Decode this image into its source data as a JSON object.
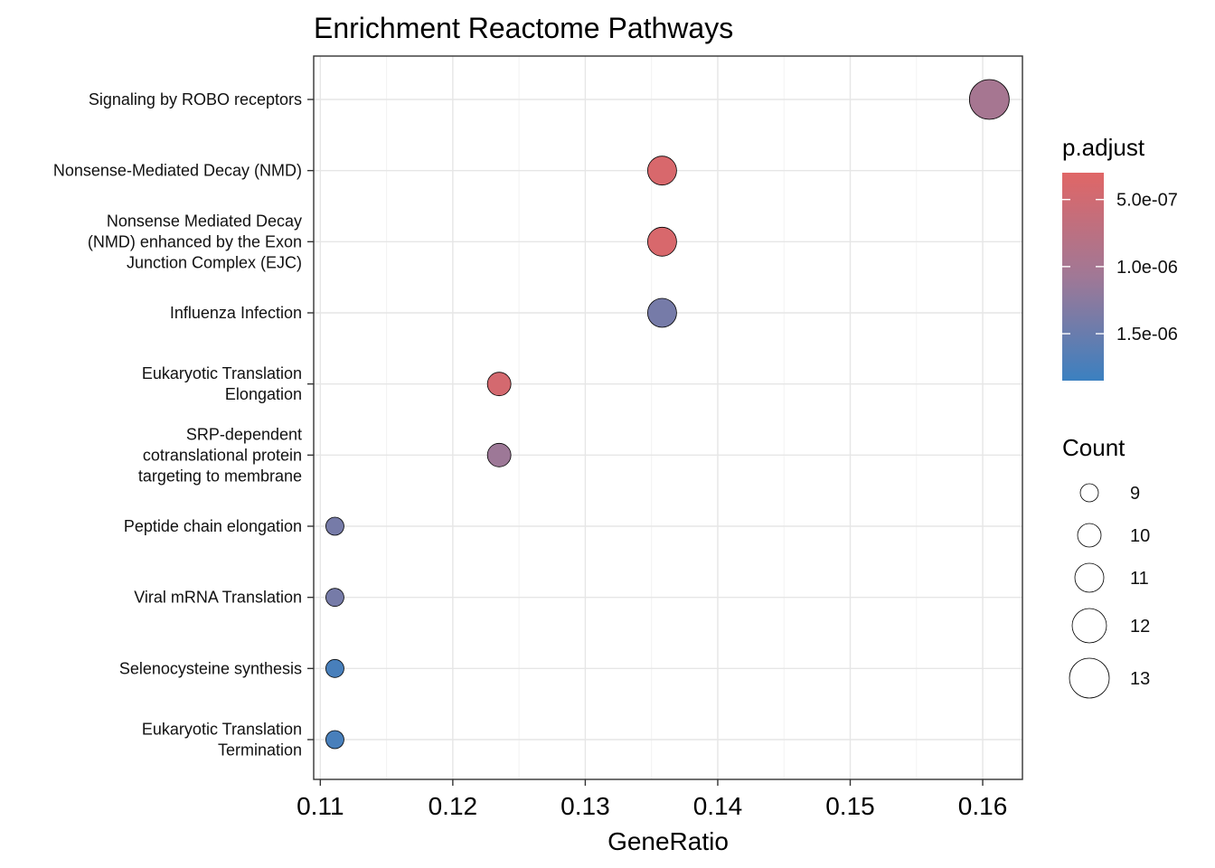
{
  "chart_data": {
    "type": "scatter",
    "title": "Enrichment Reactome Pathways",
    "xlabel": "GeneRatio",
    "ylabel": "",
    "xlim": [
      0.1095,
      0.163
    ],
    "x_ticks": [
      "0.11",
      "0.12",
      "0.13",
      "0.14",
      "0.15",
      "0.16"
    ],
    "grid": true,
    "categories": [
      "Signaling by ROBO receptors",
      "Nonsense-Mediated Decay (NMD)",
      "Nonsense Mediated Decay (NMD) enhanced by the Exon Junction Complex (EJC)",
      "Influenza Infection",
      "Eukaryotic Translation Elongation",
      "SRP-dependent cotranslational protein targeting to membrane",
      "Peptide chain elongation",
      "Viral mRNA Translation",
      "Selenocysteine synthesis",
      "Eukaryotic Translation Termination"
    ],
    "category_lines": [
      [
        "Signaling by ROBO receptors"
      ],
      [
        "Nonsense-Mediated Decay (NMD)"
      ],
      [
        "Nonsense Mediated Decay",
        "(NMD) enhanced by the Exon",
        "Junction Complex (EJC)"
      ],
      [
        "Influenza Infection"
      ],
      [
        "Eukaryotic Translation",
        "Elongation"
      ],
      [
        "SRP-dependent",
        "cotranslational protein",
        "targeting to membrane"
      ],
      [
        "Peptide chain elongation"
      ],
      [
        "Viral mRNA Translation"
      ],
      [
        "Selenocysteine synthesis"
      ],
      [
        "Eukaryotic Translation",
        "Termination"
      ]
    ],
    "points": [
      {
        "category": "Signaling by ROBO receptors",
        "gene_ratio": 0.1605,
        "count": 13,
        "p_adjust": 1e-06
      },
      {
        "category": "Nonsense-Mediated Decay (NMD)",
        "gene_ratio": 0.1358,
        "count": 11,
        "p_adjust": 4e-07
      },
      {
        "category": "Nonsense Mediated Decay (NMD) enhanced by the Exon Junction Complex (EJC)",
        "gene_ratio": 0.1358,
        "count": 11,
        "p_adjust": 4e-07
      },
      {
        "category": "Influenza Infection",
        "gene_ratio": 0.1358,
        "count": 11,
        "p_adjust": 1.4e-06
      },
      {
        "category": "Eukaryotic Translation Elongation",
        "gene_ratio": 0.1235,
        "count": 10,
        "p_adjust": 4.5e-07
      },
      {
        "category": "SRP-dependent cotranslational protein targeting to membrane",
        "gene_ratio": 0.1235,
        "count": 10,
        "p_adjust": 1.1e-06
      },
      {
        "category": "Peptide chain elongation",
        "gene_ratio": 0.1111,
        "count": 9,
        "p_adjust": 1.4e-06
      },
      {
        "category": "Viral mRNA Translation",
        "gene_ratio": 0.1111,
        "count": 9,
        "p_adjust": 1.4e-06
      },
      {
        "category": "Selenocysteine synthesis",
        "gene_ratio": 0.1111,
        "count": 9,
        "p_adjust": 1.75e-06
      },
      {
        "category": "Eukaryotic Translation Termination",
        "gene_ratio": 0.1111,
        "count": 9,
        "p_adjust": 1.75e-06
      }
    ],
    "legend_color": {
      "title": "p.adjust",
      "range": [
        3e-07,
        1.85e-06
      ],
      "ticks": [
        {
          "value": 5e-07,
          "label": "5.0e-07"
        },
        {
          "value": 1e-06,
          "label": "1.0e-06"
        },
        {
          "value": 1.5e-06,
          "label": "1.5e-06"
        }
      ],
      "low_color": "#e06666",
      "high_color": "#3b80c0",
      "placement": "right"
    },
    "legend_size": {
      "title": "Count",
      "entries": [
        {
          "count": 9,
          "label": "9"
        },
        {
          "count": 10,
          "label": "10"
        },
        {
          "count": 11,
          "label": "11"
        },
        {
          "count": 12,
          "label": "12"
        },
        {
          "count": 13,
          "label": "13"
        }
      ],
      "placement": "right"
    }
  }
}
